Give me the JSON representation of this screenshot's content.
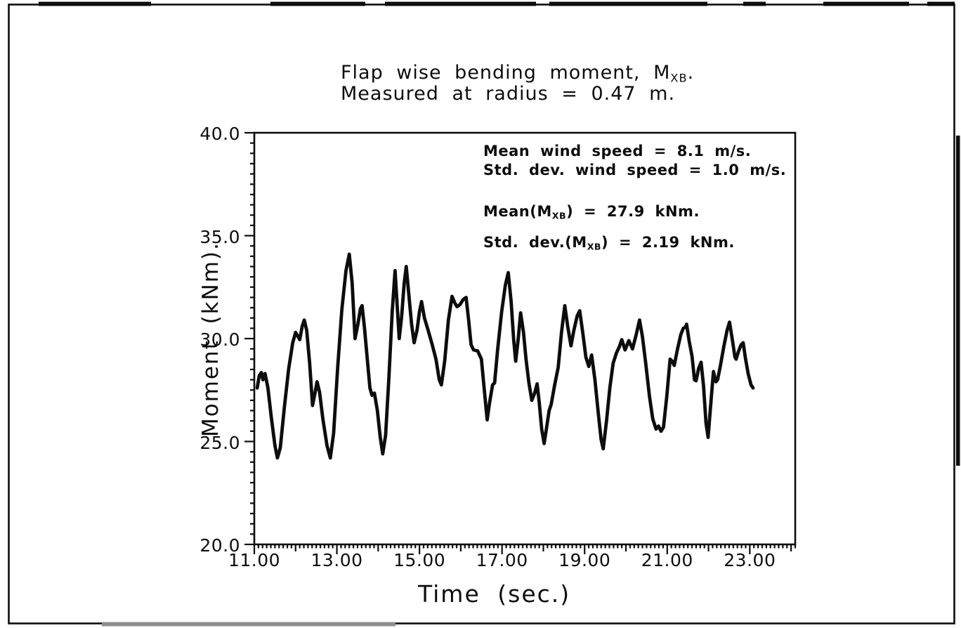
{
  "figure": {
    "title": {
      "line1_pre": "Flap wise bending moment, M",
      "line1_sub": "XB",
      "line1_post": ".",
      "line2": "Measured at radius = 0.47 m."
    },
    "annotations": {
      "wind_mean": "Mean wind speed = 8.1 m/s.",
      "wind_std": "Std. dev. wind speed = 1.0 m/s.",
      "moment_mean_pre": "Mean(M",
      "moment_mean_sub": "XB",
      "moment_mean_post": ")  =  27.9 kNm.",
      "moment_std_pre": "Std. dev.(M",
      "moment_std_sub": "XB",
      "moment_std_post": ")  =  2.19 kNm."
    },
    "ink_color": "#0d0d0d",
    "paper_color": "#ffffff"
  },
  "chart_data": {
    "type": "line",
    "title": "Flap wise bending moment, MXB. Measured at radius = 0.47 m.",
    "xlabel": "Time  (sec.)",
    "ylabel": "Moment  (kNm).",
    "xlim": [
      11.0,
      24.1
    ],
    "ylim": [
      20.0,
      40.0
    ],
    "grid": false,
    "x_major_ticks": [
      11,
      13,
      15,
      17,
      19,
      21,
      23
    ],
    "x_tick_labels": [
      "11.00",
      "13.00",
      "15.00",
      "17.00",
      "19.00",
      "21.00",
      "23.00"
    ],
    "x_medium_tick_step": 1.0,
    "x_minor_tick_step": 0.1,
    "y_major_ticks": [
      20,
      25,
      30,
      35,
      40
    ],
    "y_tick_labels": [
      "20.0",
      "25.0",
      "30.0",
      "35.0",
      "40.0"
    ],
    "y_minor_tick_step": 0.5,
    "stats": {
      "mean_wind_speed_ms": 8.1,
      "std_wind_speed_ms": 1.0,
      "mean_moment_kNm": 27.9,
      "std_moment_kNm": 2.19,
      "radius_m": 0.47
    },
    "series": [
      {
        "points": [
          [
            11.07,
            27.6
          ],
          [
            11.12,
            28.2
          ],
          [
            11.17,
            28.35
          ],
          [
            11.21,
            28.0
          ],
          [
            11.26,
            28.3
          ],
          [
            11.33,
            27.6
          ],
          [
            11.41,
            26.2
          ],
          [
            11.5,
            24.8
          ],
          [
            11.56,
            24.2
          ],
          [
            11.63,
            24.7
          ],
          [
            11.73,
            26.7
          ],
          [
            11.83,
            28.5
          ],
          [
            11.93,
            29.8
          ],
          [
            12.0,
            30.3
          ],
          [
            12.06,
            30.1
          ],
          [
            12.1,
            29.95
          ],
          [
            12.16,
            30.6
          ],
          [
            12.21,
            30.9
          ],
          [
            12.27,
            30.4
          ],
          [
            12.34,
            28.8
          ],
          [
            12.41,
            26.75
          ],
          [
            12.47,
            27.35
          ],
          [
            12.52,
            27.9
          ],
          [
            12.58,
            27.4
          ],
          [
            12.66,
            26.1
          ],
          [
            12.76,
            24.8
          ],
          [
            12.84,
            24.2
          ],
          [
            12.92,
            25.4
          ],
          [
            13.02,
            28.6
          ],
          [
            13.12,
            31.4
          ],
          [
            13.22,
            33.3
          ],
          [
            13.3,
            34.1
          ],
          [
            13.37,
            32.7
          ],
          [
            13.44,
            30.0
          ],
          [
            13.51,
            30.7
          ],
          [
            13.57,
            31.45
          ],
          [
            13.61,
            31.6
          ],
          [
            13.67,
            30.5
          ],
          [
            13.74,
            28.9
          ],
          [
            13.8,
            27.6
          ],
          [
            13.85,
            27.25
          ],
          [
            13.91,
            27.35
          ],
          [
            13.98,
            26.5
          ],
          [
            14.05,
            25.2
          ],
          [
            14.11,
            24.4
          ],
          [
            14.18,
            25.3
          ],
          [
            14.26,
            28.1
          ],
          [
            14.34,
            31.3
          ],
          [
            14.41,
            33.3
          ],
          [
            14.46,
            31.6
          ],
          [
            14.51,
            30.0
          ],
          [
            14.57,
            31.1
          ],
          [
            14.63,
            32.7
          ],
          [
            14.68,
            33.5
          ],
          [
            14.74,
            32.2
          ],
          [
            14.81,
            30.7
          ],
          [
            14.87,
            29.8
          ],
          [
            14.94,
            30.4
          ],
          [
            15.0,
            31.3
          ],
          [
            15.05,
            31.8
          ],
          [
            15.12,
            31.0
          ],
          [
            15.21,
            30.4
          ],
          [
            15.31,
            29.7
          ],
          [
            15.4,
            29.0
          ],
          [
            15.48,
            28.0
          ],
          [
            15.53,
            27.75
          ],
          [
            15.61,
            28.9
          ],
          [
            15.7,
            30.9
          ],
          [
            15.79,
            32.05
          ],
          [
            15.85,
            31.75
          ],
          [
            15.91,
            31.55
          ],
          [
            15.98,
            31.65
          ],
          [
            16.06,
            31.9
          ],
          [
            16.13,
            32.0
          ],
          [
            16.19,
            30.9
          ],
          [
            16.25,
            29.7
          ],
          [
            16.31,
            29.45
          ],
          [
            16.41,
            29.4
          ],
          [
            16.5,
            29.0
          ],
          [
            16.58,
            27.3
          ],
          [
            16.64,
            26.05
          ],
          [
            16.7,
            26.9
          ],
          [
            16.77,
            27.75
          ],
          [
            16.82,
            27.85
          ],
          [
            16.89,
            29.4
          ],
          [
            16.99,
            31.3
          ],
          [
            17.08,
            32.6
          ],
          [
            17.15,
            33.2
          ],
          [
            17.22,
            31.8
          ],
          [
            17.28,
            30.0
          ],
          [
            17.33,
            28.9
          ],
          [
            17.39,
            29.95
          ],
          [
            17.45,
            31.25
          ],
          [
            17.52,
            30.3
          ],
          [
            17.58,
            29.0
          ],
          [
            17.65,
            27.85
          ],
          [
            17.72,
            27.0
          ],
          [
            17.79,
            27.35
          ],
          [
            17.85,
            27.8
          ],
          [
            17.9,
            26.9
          ],
          [
            17.96,
            25.6
          ],
          [
            18.02,
            24.9
          ],
          [
            18.08,
            25.7
          ],
          [
            18.14,
            26.5
          ],
          [
            18.19,
            26.8
          ],
          [
            18.27,
            27.7
          ],
          [
            18.36,
            28.6
          ],
          [
            18.44,
            30.3
          ],
          [
            18.52,
            31.6
          ],
          [
            18.59,
            30.6
          ],
          [
            18.67,
            29.65
          ],
          [
            18.74,
            30.4
          ],
          [
            18.82,
            31.1
          ],
          [
            18.88,
            31.35
          ],
          [
            18.96,
            30.2
          ],
          [
            19.03,
            29.1
          ],
          [
            19.1,
            28.65
          ],
          [
            19.17,
            29.2
          ],
          [
            19.25,
            28.0
          ],
          [
            19.33,
            26.4
          ],
          [
            19.4,
            25.1
          ],
          [
            19.45,
            24.65
          ],
          [
            19.53,
            26.0
          ],
          [
            19.61,
            27.6
          ],
          [
            19.69,
            28.8
          ],
          [
            19.77,
            29.3
          ],
          [
            19.84,
            29.6
          ],
          [
            19.9,
            29.95
          ],
          [
            19.98,
            29.45
          ],
          [
            20.07,
            29.9
          ],
          [
            20.16,
            29.5
          ],
          [
            20.25,
            30.2
          ],
          [
            20.33,
            30.9
          ],
          [
            20.4,
            30.1
          ],
          [
            20.48,
            28.8
          ],
          [
            20.57,
            27.2
          ],
          [
            20.65,
            26.1
          ],
          [
            20.73,
            25.6
          ],
          [
            20.79,
            25.75
          ],
          [
            20.85,
            25.5
          ],
          [
            20.91,
            25.7
          ],
          [
            20.99,
            27.2
          ],
          [
            21.07,
            29.0
          ],
          [
            21.12,
            28.9
          ],
          [
            21.17,
            28.7
          ],
          [
            21.25,
            29.5
          ],
          [
            21.33,
            30.2
          ],
          [
            21.39,
            30.5
          ],
          [
            21.44,
            30.55
          ],
          [
            21.47,
            30.7
          ],
          [
            21.53,
            29.9
          ],
          [
            21.6,
            29.15
          ],
          [
            21.66,
            28.0
          ],
          [
            21.7,
            27.95
          ],
          [
            21.76,
            28.55
          ],
          [
            21.82,
            28.85
          ],
          [
            21.88,
            27.7
          ],
          [
            21.94,
            25.9
          ],
          [
            21.99,
            25.2
          ],
          [
            22.05,
            26.7
          ],
          [
            22.12,
            28.4
          ],
          [
            22.18,
            27.9
          ],
          [
            22.22,
            28.0
          ],
          [
            22.29,
            28.7
          ],
          [
            22.37,
            29.6
          ],
          [
            22.45,
            30.4
          ],
          [
            22.51,
            30.8
          ],
          [
            22.58,
            29.9
          ],
          [
            22.64,
            29.1
          ],
          [
            22.67,
            29.0
          ],
          [
            22.73,
            29.4
          ],
          [
            22.79,
            29.7
          ],
          [
            22.84,
            29.8
          ],
          [
            22.89,
            29.1
          ],
          [
            22.96,
            28.3
          ],
          [
            23.03,
            27.75
          ],
          [
            23.08,
            27.6
          ]
        ]
      }
    ]
  }
}
